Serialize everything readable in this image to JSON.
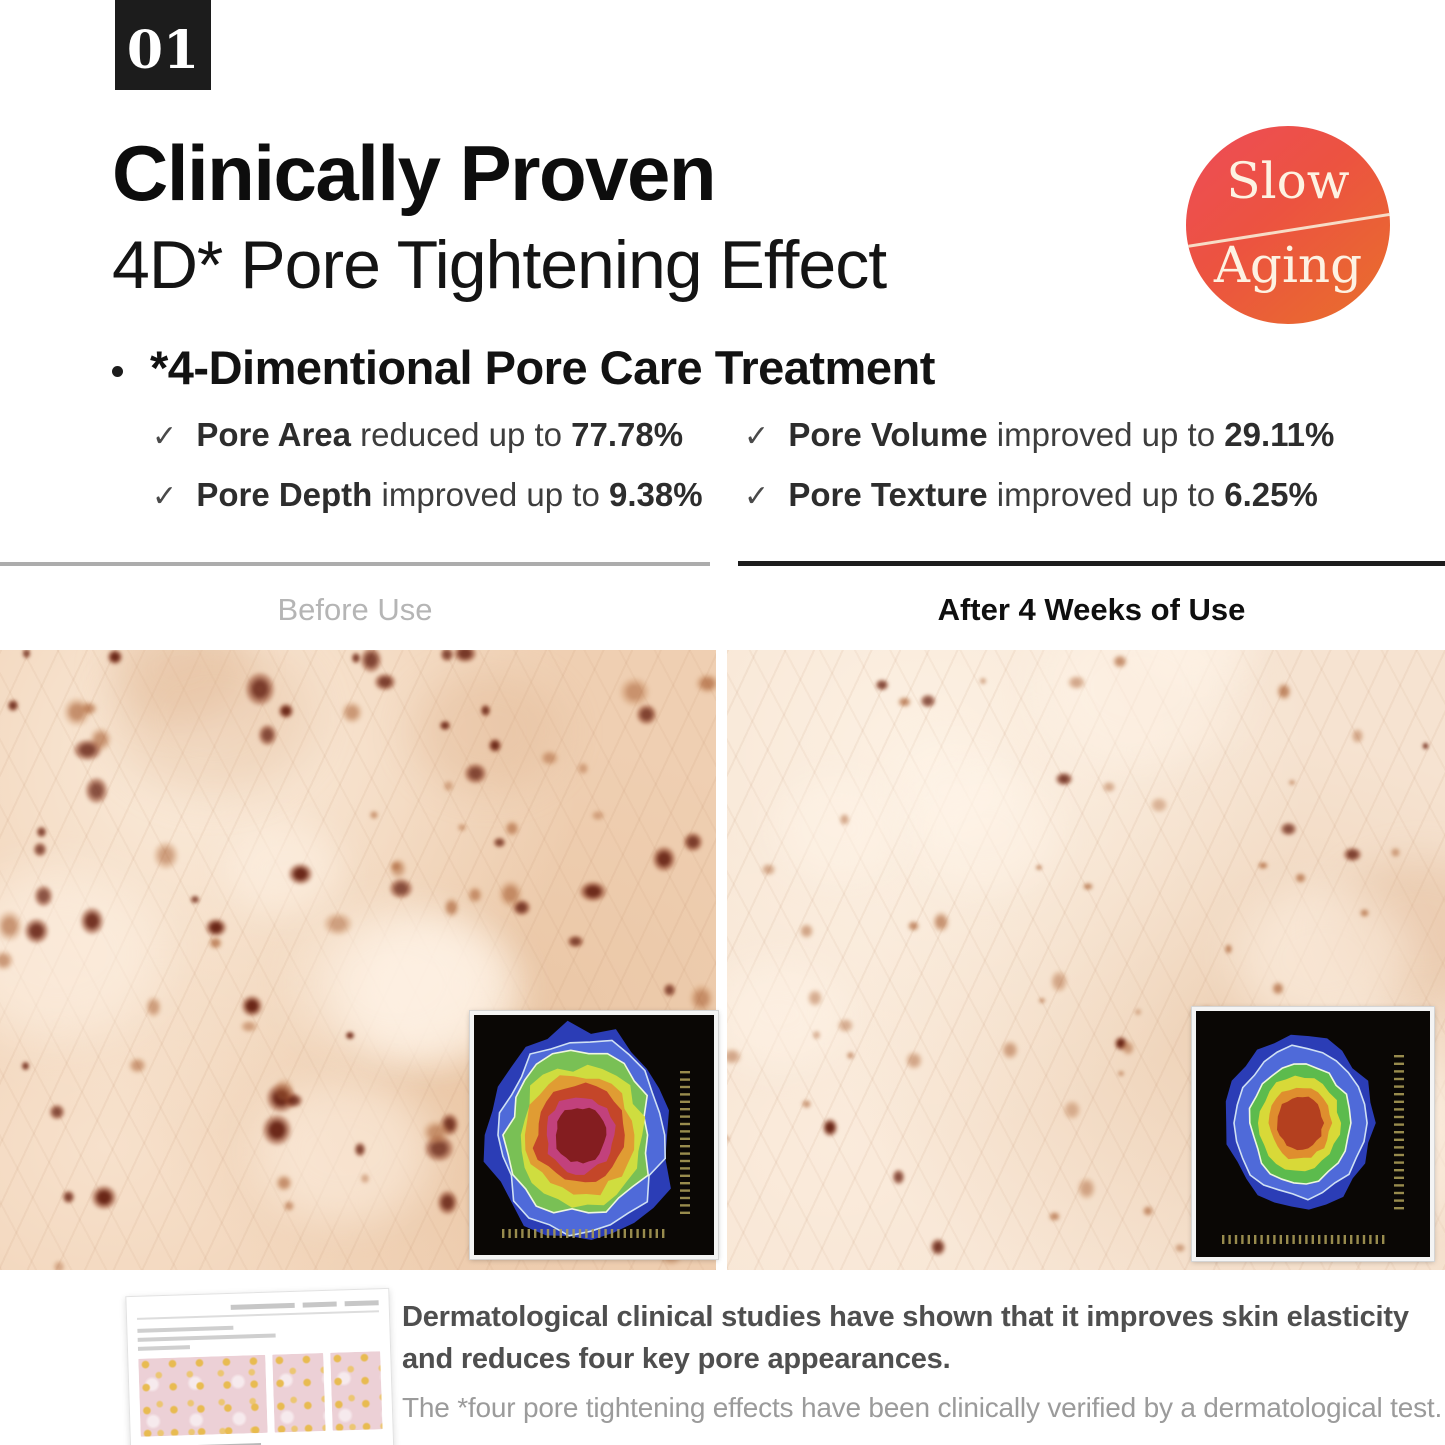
{
  "section_badge": {
    "number": "01"
  },
  "header": {
    "title": "Clinically Proven",
    "subtitle": "4D* Pore Tightening Effect",
    "feature_heading": "*4-Dimentional Pore Care Treatment"
  },
  "slow_aging_badge": {
    "word_top": "Slow",
    "word_bottom": "Aging",
    "gradient_top": "#ee4c58",
    "gradient_bottom": "#e8702b"
  },
  "glyphs": {
    "check": "✓"
  },
  "claims": [
    {
      "label": "Pore Area",
      "phrase": "reduced up to",
      "value": "77.78%"
    },
    {
      "label": "Pore Volume",
      "phrase": "improved up to",
      "value": "29.11%"
    },
    {
      "label": "Pore Depth",
      "phrase": "improved up to",
      "value": "9.38%"
    },
    {
      "label": "Pore Texture",
      "phrase": "improved up to",
      "value": "6.25%"
    }
  ],
  "comparison": {
    "before_label": "Before Use",
    "after_label": "After 4 Weeks of Use"
  },
  "footer": {
    "headline": "Dermatological clinical studies have shown that it improves skin elasticity and reduces four key pore appearances.",
    "note": "The *four pore tightening effects have been clinically verified by a dermatological test."
  }
}
